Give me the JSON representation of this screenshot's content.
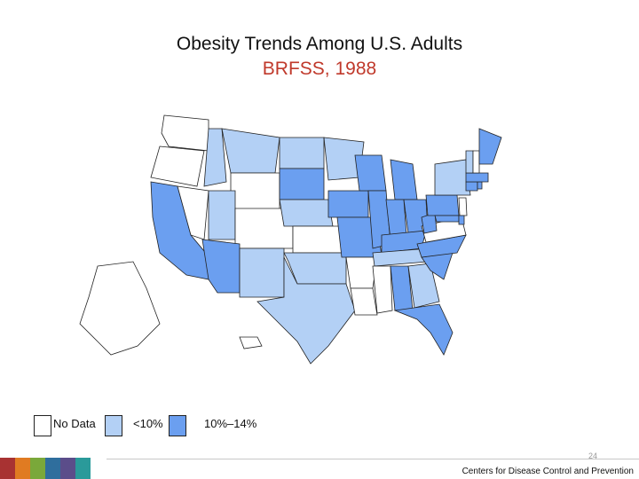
{
  "title": "Obesity Trends Among U.S. Adults",
  "subtitle": "BRFSS, 1988",
  "legend": [
    {
      "label": "No Data",
      "color": "#ffffff"
    },
    {
      "label": "<10%",
      "color": "#b3d0f5"
    },
    {
      "label": "10%–14%",
      "color": "#6b9ff0"
    }
  ],
  "states": {
    "no_data": [
      "WA",
      "OR",
      "NV",
      "WY",
      "CO",
      "KS",
      "AR",
      "LA",
      "MS",
      "VA",
      "NJ",
      "NH"
    ],
    "lt10": [
      "ID",
      "MT",
      "UT",
      "ND",
      "MN",
      "NE",
      "NM",
      "TX",
      "OK",
      "GA",
      "TN",
      "NY",
      "VT"
    ],
    "p10_14": [
      "CA",
      "AZ",
      "SD",
      "IA",
      "WI",
      "MO",
      "IL",
      "IN",
      "MI",
      "OH",
      "KY",
      "WV",
      "NC",
      "SC",
      "AL",
      "FL",
      "ME",
      "MA",
      "CT",
      "RI",
      "DE",
      "MD",
      "PA"
    ]
  },
  "footer": {
    "colors": [
      "#a83232",
      "#e07b22",
      "#7aa83a",
      "#2f6e9d",
      "#5b4d8a",
      "#2a9a9a"
    ],
    "page_number": "24",
    "credit": "Centers for Disease Control and Prevention"
  }
}
